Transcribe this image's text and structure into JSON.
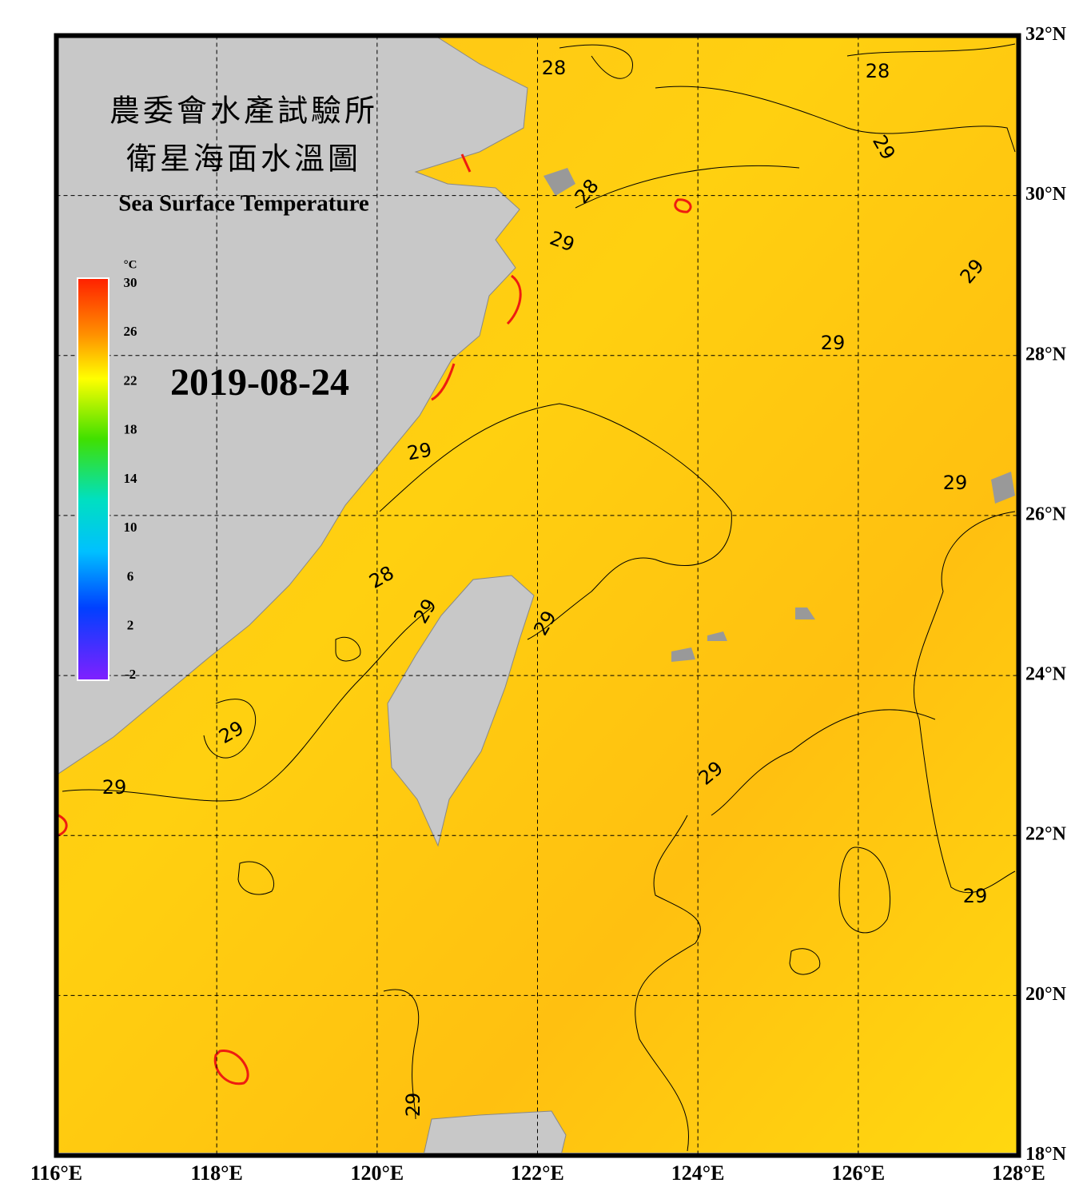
{
  "header": {
    "title_line1": "農委會水產試驗所",
    "title_line2": "衛星海面水溫圖",
    "title_en": "Sea Surface Temperature",
    "date": "2019-08-24"
  },
  "colorbar": {
    "unit": "°C",
    "ticks": [
      30,
      26,
      22,
      18,
      14,
      10,
      6,
      2,
      -2
    ],
    "range": [
      -2,
      30
    ]
  },
  "map": {
    "xlim": [
      116,
      128
    ],
    "ylim": [
      18,
      32
    ],
    "xticks": [
      {
        "value": 116,
        "label": "116°E"
      },
      {
        "value": 118,
        "label": "118°E"
      },
      {
        "value": 120,
        "label": "120°E"
      },
      {
        "value": 122,
        "label": "122°E"
      },
      {
        "value": 124,
        "label": "124°E"
      },
      {
        "value": 126,
        "label": "126°E"
      },
      {
        "value": 128,
        "label": "128°E"
      }
    ],
    "yticks": [
      {
        "value": 18,
        "label": "18°N"
      },
      {
        "value": 20,
        "label": "20°N"
      },
      {
        "value": 22,
        "label": "22°N"
      },
      {
        "value": 24,
        "label": "24°N"
      },
      {
        "value": 26,
        "label": "26°N"
      },
      {
        "value": 28,
        "label": "28°N"
      },
      {
        "value": 30,
        "label": "30°N"
      },
      {
        "value": 32,
        "label": "32°N"
      }
    ],
    "grid": true,
    "contour_labels": [
      "28",
      "28",
      "29",
      "28",
      "29",
      "29",
      "29",
      "29",
      "29",
      "28",
      "29",
      "29",
      "29",
      "29",
      "29",
      "29",
      "29"
    ]
  }
}
